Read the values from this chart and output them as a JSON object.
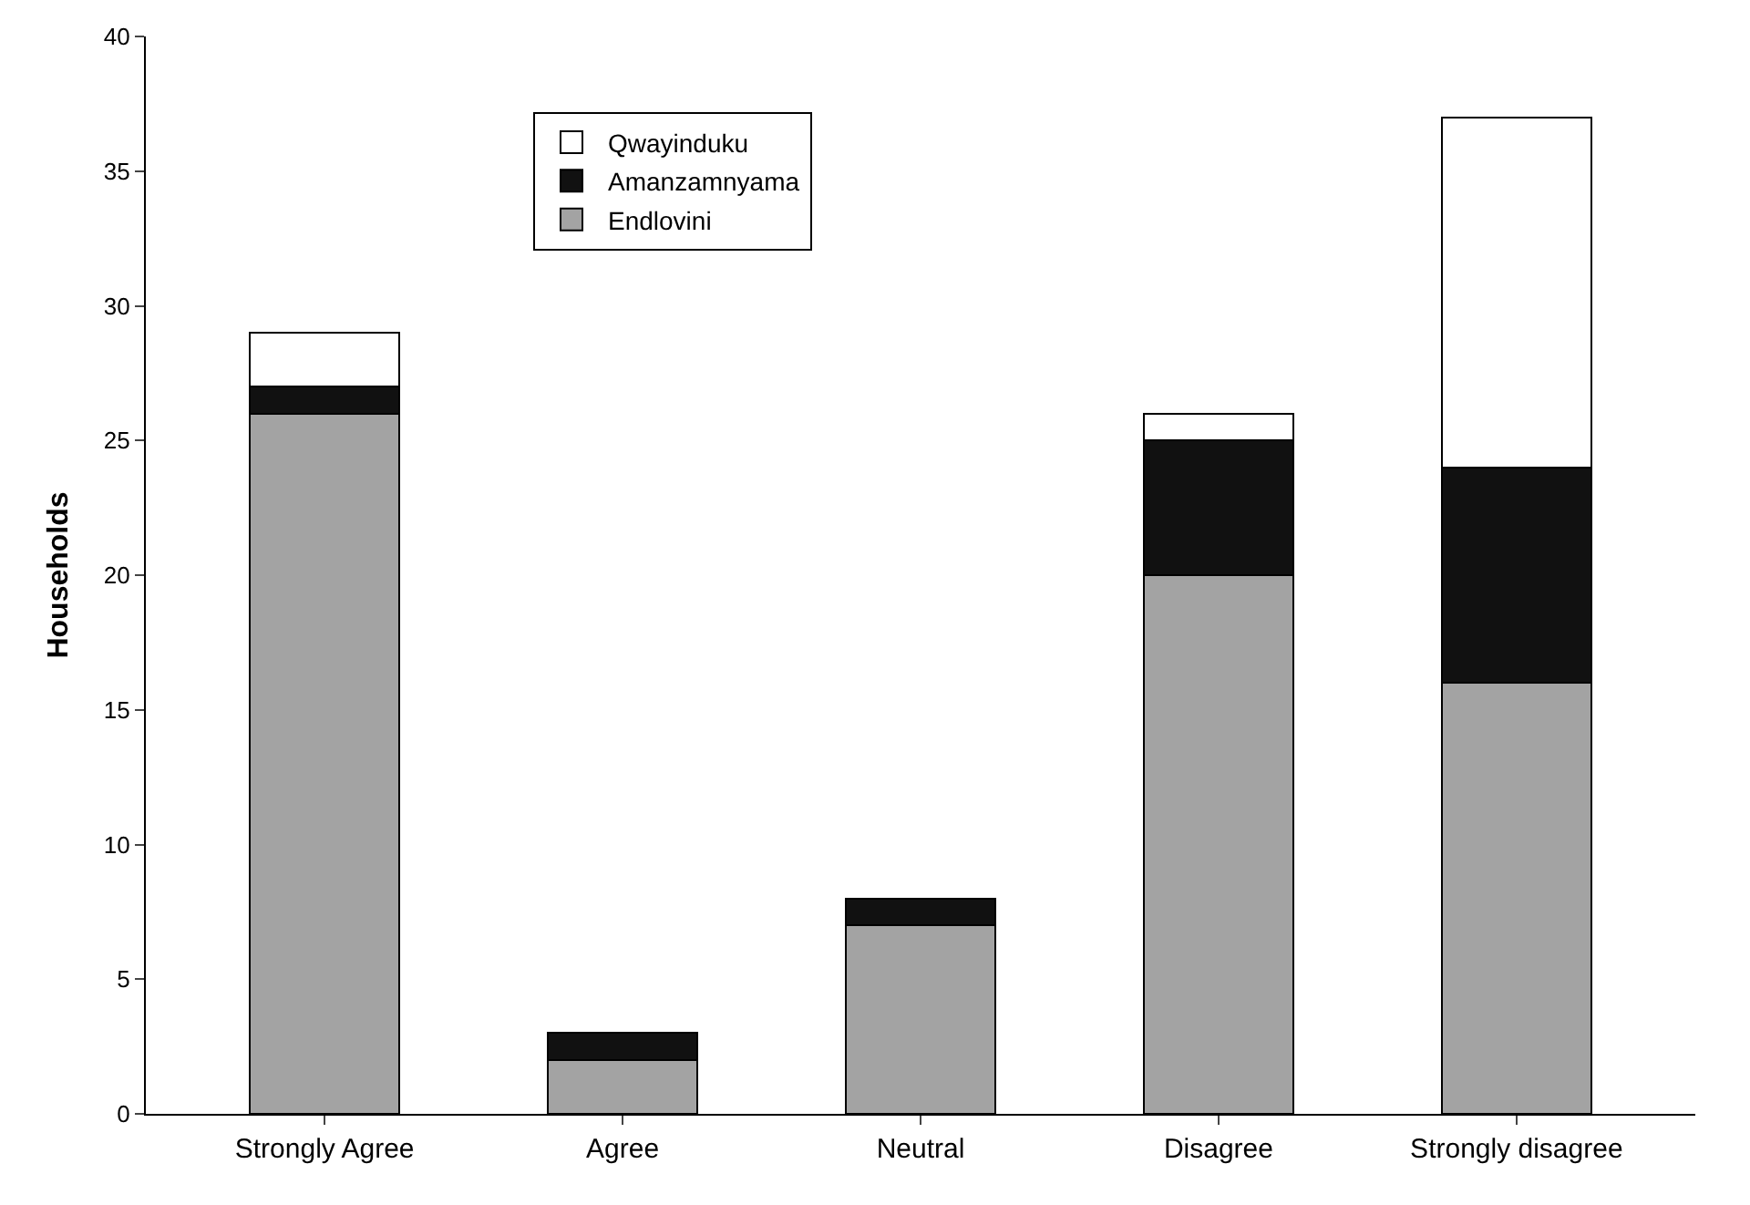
{
  "chart_data": {
    "type": "bar",
    "stacked": true,
    "ylabel": "Households",
    "categories": [
      "Strongly Agree",
      "Agree",
      "Neutral",
      "Disagree",
      "Strongly disagree"
    ],
    "series": [
      {
        "name": "Endlovini",
        "color": "#a3a3a3",
        "values": [
          26,
          2,
          7,
          20,
          16
        ]
      },
      {
        "name": "Amanzamnyama",
        "color": "#111111",
        "values": [
          1,
          1,
          1,
          5,
          8
        ]
      },
      {
        "name": "Qwayinduku",
        "color": "#ffffff",
        "values": [
          2,
          null,
          null,
          1,
          13
        ]
      }
    ],
    "ylim": [
      0,
      40
    ],
    "yticks": [
      0,
      5,
      10,
      15,
      20,
      25,
      30,
      35,
      40
    ],
    "grid": false,
    "legend": "top left"
  }
}
